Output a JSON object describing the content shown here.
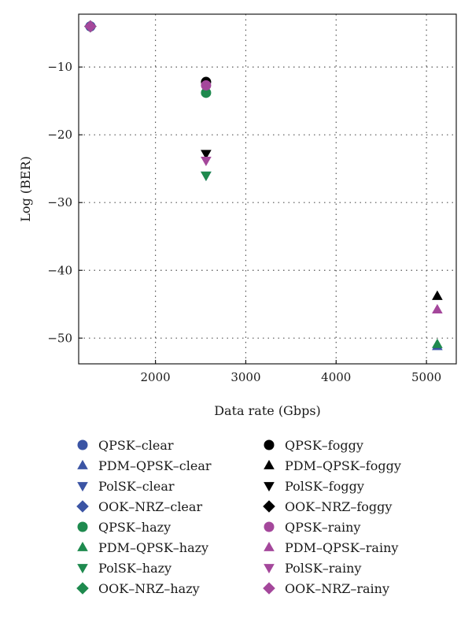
{
  "chart_data": {
    "type": "scatter",
    "title": "",
    "xlabel": "Data rate (Gbps)",
    "ylabel": "Log (BER)",
    "xlim": [
      1150,
      5330
    ],
    "ylim": [
      -53.8,
      -2.2
    ],
    "xticks": [
      2000,
      3000,
      4000,
      5000
    ],
    "yticks": [
      -10,
      -20,
      -30,
      -40,
      -50
    ],
    "grid": true,
    "legend_placement": "below",
    "colors": {
      "clear": "#3b54a4",
      "hazy": "#1e8a4e",
      "foggy": "#000000",
      "rainy": "#a4479b"
    },
    "series": [
      {
        "name": "QPSK–clear",
        "marker": "circle",
        "color": "clear",
        "points": [
          {
            "x": 1280,
            "y": -4
          }
        ]
      },
      {
        "name": "PDM–QPSK–clear",
        "marker": "triangle-up",
        "color": "clear",
        "points": [
          {
            "x": 5120,
            "y": -51.2
          }
        ]
      },
      {
        "name": "PolSK–clear",
        "marker": "triangle-down",
        "color": "clear",
        "points": [
          {
            "x": 2560,
            "y": -26
          }
        ]
      },
      {
        "name": "OOK–NRZ–clear",
        "marker": "diamond",
        "color": "clear",
        "points": [
          {
            "x": 1280,
            "y": -4
          }
        ]
      },
      {
        "name": "QPSK–foggy",
        "marker": "circle",
        "color": "foggy",
        "points": [
          {
            "x": 2560,
            "y": -12.2
          }
        ]
      },
      {
        "name": "PDM–QPSK–foggy",
        "marker": "triangle-up",
        "color": "foggy",
        "points": [
          {
            "x": 5120,
            "y": -43.8
          }
        ]
      },
      {
        "name": "PolSK–foggy",
        "marker": "triangle-down",
        "color": "foggy",
        "points": [
          {
            "x": 2560,
            "y": -22.8
          }
        ]
      },
      {
        "name": "OOK–NRZ–foggy",
        "marker": "diamond",
        "color": "foggy",
        "points": [
          {
            "x": 1280,
            "y": -4
          }
        ]
      },
      {
        "name": "QPSK–hazy",
        "marker": "circle",
        "color": "hazy",
        "points": [
          {
            "x": 2560,
            "y": -13.8
          }
        ]
      },
      {
        "name": "PDM–QPSK–hazy",
        "marker": "triangle-up",
        "color": "hazy",
        "points": [
          {
            "x": 5120,
            "y": -50.9
          }
        ]
      },
      {
        "name": "PolSK–hazy",
        "marker": "triangle-down",
        "color": "hazy",
        "points": [
          {
            "x": 2560,
            "y": -26
          }
        ]
      },
      {
        "name": "OOK–NRZ–hazy",
        "marker": "diamond",
        "color": "hazy",
        "points": [
          {
            "x": 1280,
            "y": -4
          }
        ]
      },
      {
        "name": "QPSK–rainy",
        "marker": "circle",
        "color": "rainy",
        "points": [
          {
            "x": 2560,
            "y": -12.7
          }
        ]
      },
      {
        "name": "PDM–QPSK–rainy",
        "marker": "triangle-up",
        "color": "rainy",
        "points": [
          {
            "x": 5120,
            "y": -45.8
          }
        ]
      },
      {
        "name": "PolSK–rainy",
        "marker": "triangle-down",
        "color": "rainy",
        "points": [
          {
            "x": 2560,
            "y": -23.8
          }
        ]
      },
      {
        "name": "OOK–NRZ–rainy",
        "marker": "diamond",
        "color": "rainy",
        "points": [
          {
            "x": 1280,
            "y": -4
          }
        ]
      }
    ],
    "legend": {
      "columns": [
        [
          "QPSK–clear",
          "PDM–QPSK–clear",
          "PolSK–clear",
          "OOK–NRZ–clear",
          "QPSK–hazy",
          "PDM–QPSK–hazy",
          "PolSK–hazy",
          "OOK–NRZ–hazy"
        ],
        [
          "QPSK–foggy",
          "PDM–QPSK–foggy",
          "PolSK–foggy",
          "OOK–NRZ–foggy",
          "QPSK–rainy",
          "PDM–QPSK–rainy",
          "PolSK–rainy",
          "OOK–NRZ–rainy"
        ]
      ]
    }
  }
}
